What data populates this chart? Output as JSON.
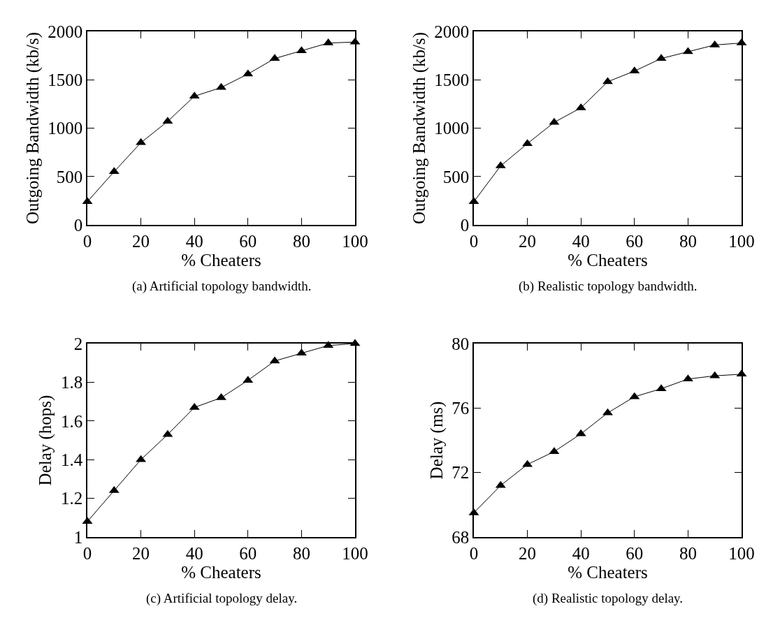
{
  "chart_data": [
    {
      "type": "line",
      "xlabel": "% Cheaters",
      "ylabel": "Outgoing Bandwidth (kb/s)",
      "x": [
        0,
        10,
        20,
        30,
        40,
        50,
        60,
        70,
        80,
        90,
        100
      ],
      "series": [
        {
          "color": "#000000",
          "values": [
            240,
            550,
            850,
            1070,
            1330,
            1420,
            1560,
            1720,
            1800,
            1880,
            1890
          ]
        }
      ],
      "xlim": [
        0,
        100
      ],
      "xticks": [
        0,
        20,
        40,
        60,
        80,
        100
      ],
      "ylim": [
        0,
        2000
      ],
      "yticks": [
        0,
        500,
        1000,
        1500,
        2000
      ],
      "marker": "triangle",
      "line_style": "solid",
      "annotations": [
        "(a) Artificial topology bandwidth."
      ]
    },
    {
      "type": "line",
      "xlabel": "% Cheaters",
      "ylabel": "Outgoing Bandwidth (kb/s)",
      "x": [
        0,
        10,
        20,
        30,
        40,
        50,
        60,
        70,
        80,
        90,
        100
      ],
      "series": [
        {
          "color": "#000000",
          "values": [
            240,
            610,
            840,
            1060,
            1210,
            1480,
            1590,
            1720,
            1790,
            1860,
            1880
          ]
        }
      ],
      "xlim": [
        0,
        100
      ],
      "xticks": [
        0,
        20,
        40,
        60,
        80,
        100
      ],
      "ylim": [
        0,
        2000
      ],
      "yticks": [
        0,
        500,
        1000,
        1500,
        2000
      ],
      "marker": "triangle",
      "line_style": "solid",
      "annotations": [
        "(b) Realistic topology bandwidth."
      ]
    },
    {
      "type": "line",
      "xlabel": "% Cheaters",
      "ylabel": "Delay (hops)",
      "x": [
        0,
        10,
        20,
        30,
        40,
        50,
        60,
        70,
        80,
        90,
        100
      ],
      "series": [
        {
          "color": "#000000",
          "values": [
            1.08,
            1.24,
            1.4,
            1.53,
            1.67,
            1.72,
            1.81,
            1.91,
            1.95,
            1.99,
            2.0
          ]
        }
      ],
      "xlim": [
        0,
        100
      ],
      "xticks": [
        0,
        20,
        40,
        60,
        80,
        100
      ],
      "ylim": [
        1,
        2
      ],
      "yticks": [
        1,
        1.2,
        1.4,
        1.6,
        1.8,
        2
      ],
      "marker": "triangle",
      "line_style": "solid",
      "annotations": [
        "(c) Artificial topology delay."
      ]
    },
    {
      "type": "line",
      "xlabel": "% Cheaters",
      "ylabel": "Delay (ms)",
      "x": [
        0,
        10,
        20,
        30,
        40,
        50,
        60,
        70,
        80,
        90,
        100
      ],
      "series": [
        {
          "color": "#000000",
          "values": [
            69.5,
            71.2,
            72.5,
            73.3,
            74.4,
            75.7,
            76.7,
            77.2,
            77.8,
            78.0,
            78.1
          ]
        }
      ],
      "xlim": [
        0,
        100
      ],
      "xticks": [
        0,
        20,
        40,
        60,
        80,
        100
      ],
      "ylim": [
        68,
        80
      ],
      "yticks": [
        68,
        72,
        76,
        80
      ],
      "marker": "triangle",
      "line_style": "solid",
      "annotations": [
        "(d) Realistic topology delay."
      ]
    }
  ]
}
